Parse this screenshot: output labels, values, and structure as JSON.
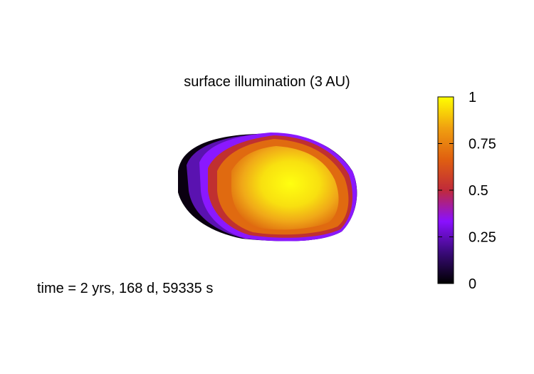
{
  "chart_data": {
    "type": "surface",
    "title": "surface illumination (3 AU)",
    "annotation": "time = 2 yrs, 168 d, 59335 s",
    "colorbar": {
      "range": [
        0,
        1
      ],
      "ticks": [
        0,
        0.25,
        0.5,
        0.75,
        1
      ],
      "tick_labels": [
        "0",
        "0.25",
        "0.5",
        "0.75",
        "1"
      ],
      "palette": [
        "#000000",
        "#3a0a7a",
        "#8a10ff",
        "#c02a3a",
        "#e06010",
        "#f0a010",
        "#ffff00"
      ]
    },
    "xlabel": "",
    "ylabel": "",
    "zlabel": ""
  }
}
